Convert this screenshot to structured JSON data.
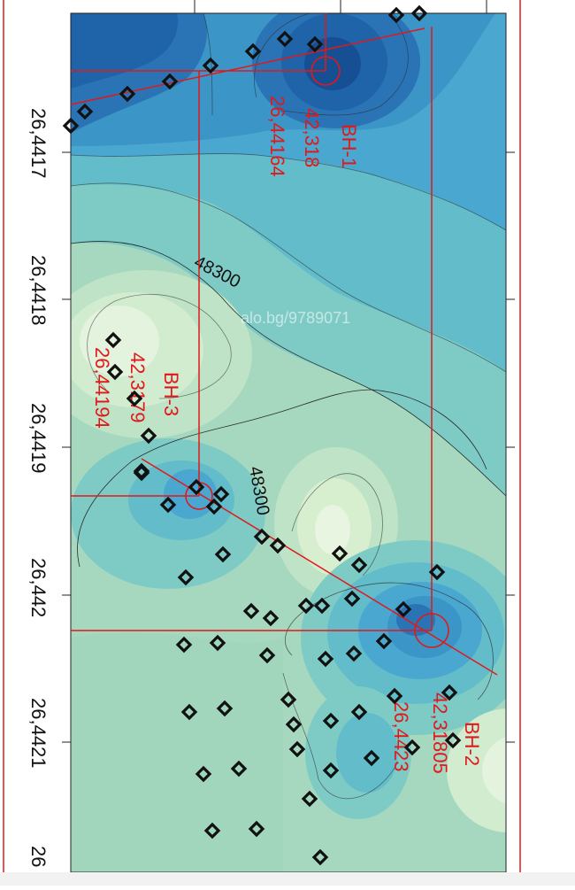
{
  "map": {
    "y_tick_labels": [
      "26,4417",
      "26,4418",
      "26,4419",
      "26,442",
      "26,4421",
      "26"
    ],
    "contour_labels": [
      "48300",
      "48300"
    ],
    "watermark": "alo.bg/9789071",
    "colors": {
      "guide_lines": "#e0191b",
      "label_text": "#e0191b",
      "marker": "#111111",
      "contour_line": "#2a2a2a",
      "deep_blue": "#1f63a8",
      "mid_blue": "#4aa7cf",
      "teal": "#7ecbc6",
      "pale_green": "#d8efcf"
    }
  },
  "boreholes": [
    {
      "name": "BH-1",
      "lat": "42,318",
      "lon": "26,44164"
    },
    {
      "name": "BH-2",
      "lat": "42,31805",
      "lon": "26,4423"
    },
    {
      "name": "BH-3",
      "lat": "42,3179",
      "lon": "26,44194"
    }
  ]
}
